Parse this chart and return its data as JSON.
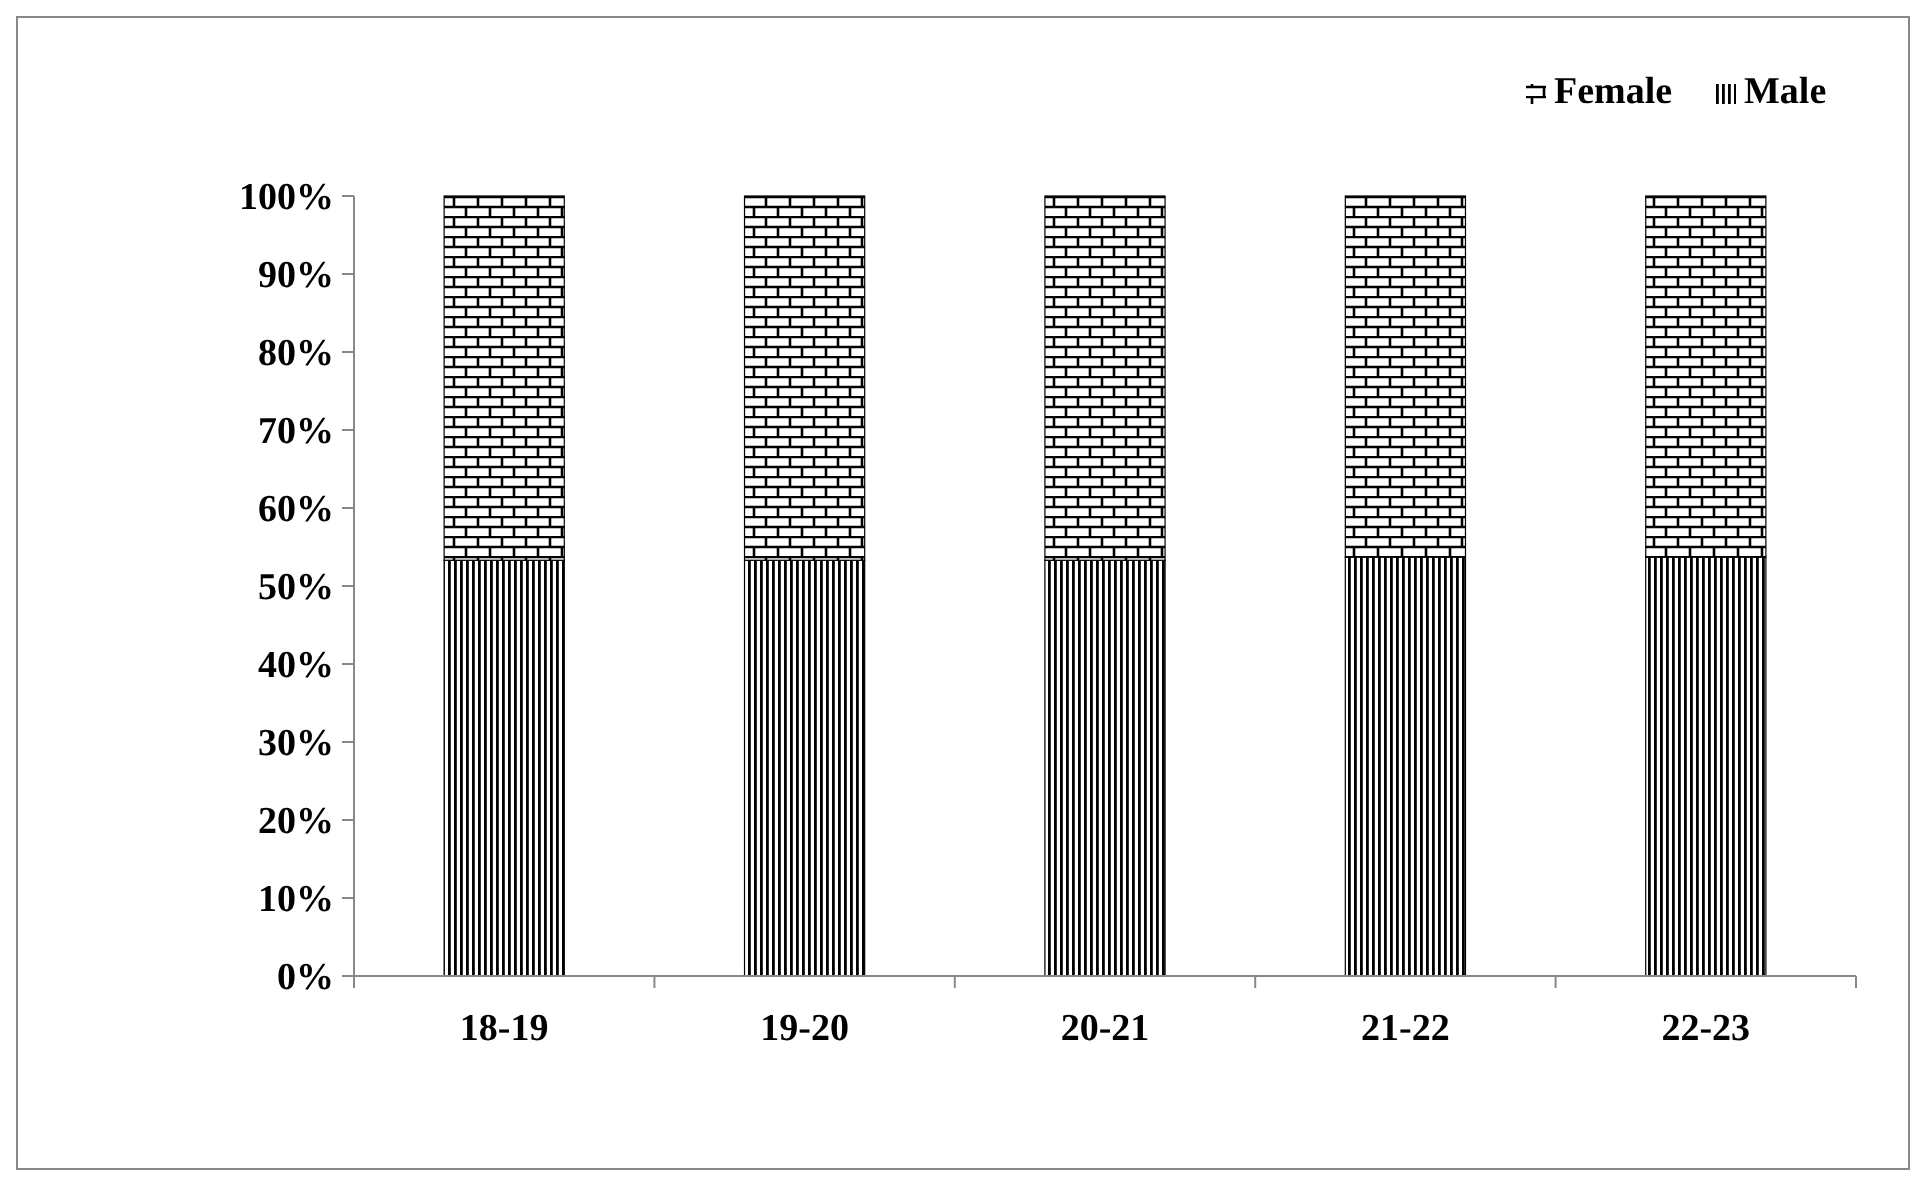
{
  "chart_data": {
    "type": "bar",
    "stacked": true,
    "categories": [
      "18-19",
      "19-20",
      "20-21",
      "21-22",
      "22-23"
    ],
    "series": [
      {
        "name": "Male",
        "color": "#000000",
        "values": [
          53.3,
          53.3,
          53.3,
          53.7,
          53.7
        ]
      },
      {
        "name": "Female",
        "color": "#000000",
        "values": [
          46.7,
          46.7,
          46.7,
          46.3,
          46.3
        ]
      }
    ],
    "ylim": [
      0,
      100
    ],
    "yticks": [
      {
        "value": 0,
        "label": "0%"
      },
      {
        "value": 10,
        "label": "10%"
      },
      {
        "value": 20,
        "label": "20%"
      },
      {
        "value": 30,
        "label": "30%"
      },
      {
        "value": 40,
        "label": "40%"
      },
      {
        "value": 50,
        "label": "50%"
      },
      {
        "value": 60,
        "label": "60%"
      },
      {
        "value": 70,
        "label": "70%"
      },
      {
        "value": 80,
        "label": "80%"
      },
      {
        "value": 90,
        "label": "90%"
      },
      {
        "value": 100,
        "label": "100%"
      }
    ],
    "grid": false,
    "legend": "top right"
  }
}
